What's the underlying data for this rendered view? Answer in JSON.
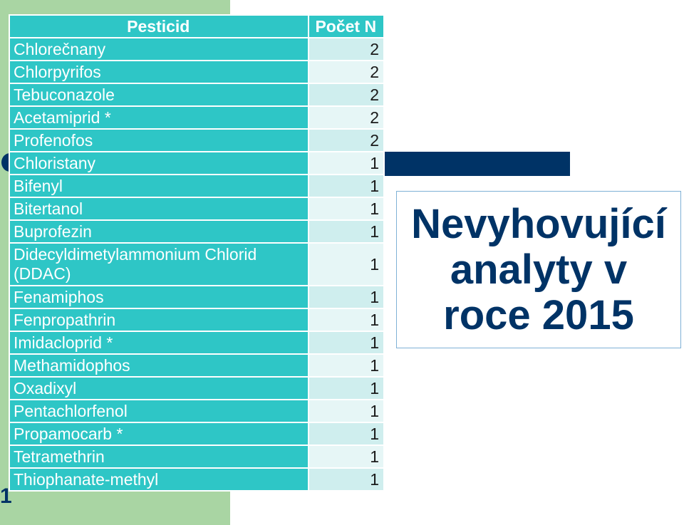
{
  "table": {
    "headers": {
      "name": "Pesticid",
      "count": "Počet N"
    },
    "rows": [
      {
        "name": "Chlorečnany",
        "count": "2"
      },
      {
        "name": "Chlorpyrifos",
        "count": "2"
      },
      {
        "name": "Tebuconazole",
        "count": "2"
      },
      {
        "name": "Acetamiprid *",
        "count": "2"
      },
      {
        "name": "Profenofos",
        "count": "2"
      },
      {
        "name": "Chloristany",
        "count": "1"
      },
      {
        "name": "Bifenyl",
        "count": "1"
      },
      {
        "name": "Bitertanol",
        "count": "1"
      },
      {
        "name": "Buprofezin",
        "count": "1"
      },
      {
        "name": "Didecyldimetylammonium Chlorid (DDAC)",
        "count": "1"
      },
      {
        "name": "Fenamiphos",
        "count": "1"
      },
      {
        "name": "Fenpropathrin",
        "count": "1"
      },
      {
        "name": "Imidacloprid *",
        "count": "1"
      },
      {
        "name": "Methamidophos",
        "count": "1"
      },
      {
        "name": "Oxadixyl",
        "count": "1"
      },
      {
        "name": "Pentachlorfenol",
        "count": "1"
      },
      {
        "name": "Propamocarb *",
        "count": "1"
      },
      {
        "name": "Tetramethrin",
        "count": "1"
      },
      {
        "name": "Thiophanate-methyl",
        "count": "1"
      }
    ]
  },
  "title": {
    "line1": "Nevyhovující",
    "line2": "analyty v",
    "line3": "roce 2015"
  },
  "slide_number": "1",
  "colors": {
    "teal": "#2ec6c6",
    "green_background": "#a9d5a3",
    "navy": "#003366"
  }
}
